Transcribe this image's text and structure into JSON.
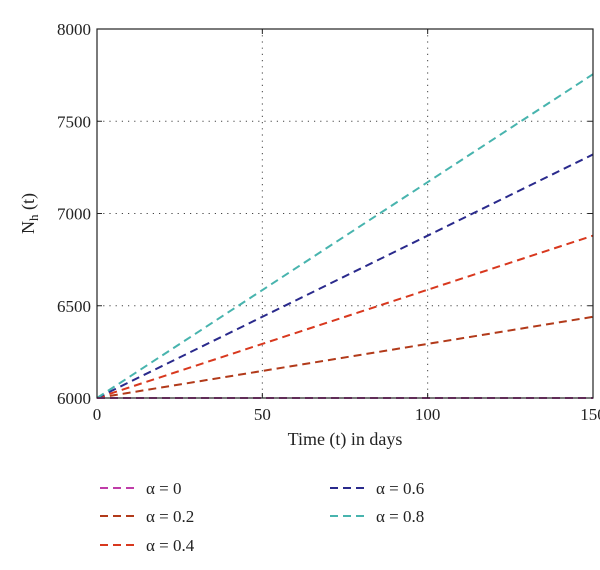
{
  "chart_data": {
    "type": "line",
    "xlabel": "Time (t) in days",
    "ylabel_main": "N",
    "ylabel_sub": "h",
    "ylabel_tail": " (t)",
    "xlim": [
      0,
      150
    ],
    "ylim": [
      6000,
      8000
    ],
    "xticks": [
      0,
      50,
      100,
      150
    ],
    "yticks": [
      6000,
      6500,
      7000,
      7500,
      8000
    ],
    "grid": true,
    "legend_position": "bottom",
    "x": [
      0,
      150
    ],
    "series": [
      {
        "name": "α = 0",
        "color": "#c03ca8",
        "values": [
          6000,
          6000
        ]
      },
      {
        "name": "α = 0.2",
        "color": "#b23a1a",
        "values": [
          6000,
          6440
        ]
      },
      {
        "name": "α = 0.4",
        "color": "#d8381e",
        "values": [
          6000,
          6880
        ]
      },
      {
        "name": "α = 0.6",
        "color": "#2a2a8c",
        "values": [
          6000,
          7320
        ]
      },
      {
        "name": "α = 0.8",
        "color": "#48b4ae",
        "values": [
          6000,
          7755
        ]
      }
    ]
  }
}
